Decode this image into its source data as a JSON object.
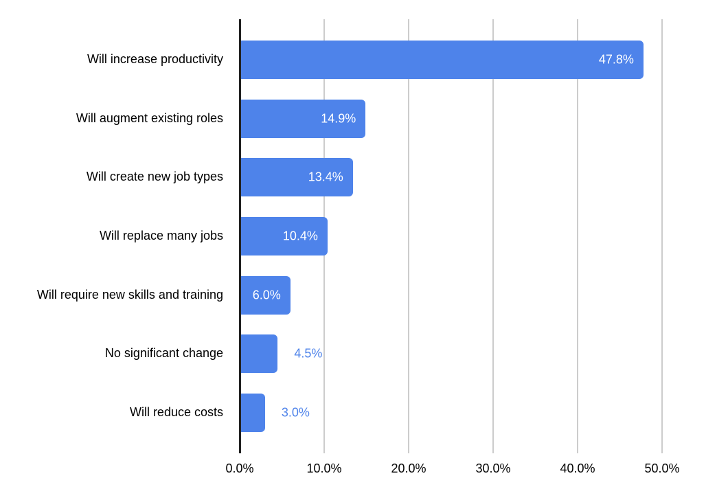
{
  "chart_data": {
    "type": "bar",
    "orientation": "horizontal",
    "categories": [
      "Will increase productivity",
      "Will augment existing roles",
      "Will create new job types",
      "Will replace many jobs",
      "Will require new skills and training",
      "No significant change",
      "Will reduce costs"
    ],
    "values": [
      47.8,
      14.9,
      13.4,
      10.4,
      6.0,
      4.5,
      3.0
    ],
    "value_labels": [
      "47.8%",
      "14.9%",
      "13.4%",
      "10.4%",
      "6.0%",
      "4.5%",
      "3.0%"
    ],
    "value_label_placement": [
      "inside",
      "inside",
      "inside",
      "inside",
      "inside",
      "outside",
      "outside"
    ],
    "x_ticks": [
      "0.0%",
      "10.0%",
      "20.0%",
      "30.0%",
      "40.0%",
      "50.0%"
    ],
    "x_tick_values": [
      0,
      10,
      20,
      30,
      40,
      50
    ],
    "xlim": [
      0,
      50
    ],
    "title": "",
    "xlabel": "",
    "ylabel": "",
    "grid": true,
    "legend": false,
    "colors": {
      "bar": "#4e83ea",
      "value_label_inside": "#ffffff",
      "value_label_outside": "#4e83ea",
      "gridline": "#cccccc",
      "axis_line": "#212121",
      "category_label": "#000000",
      "tick_label": "#000000",
      "background": "#ffffff"
    }
  }
}
